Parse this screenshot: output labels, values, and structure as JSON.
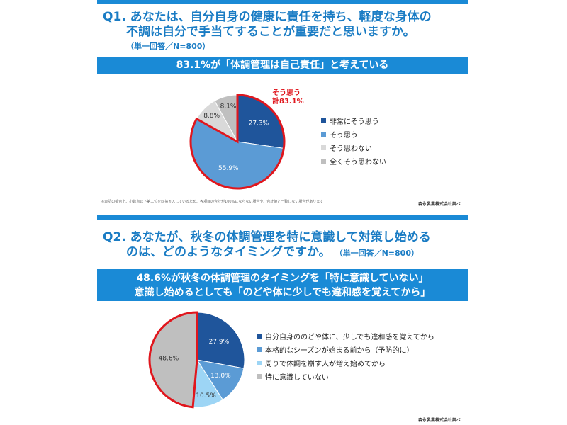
{
  "q1": {
    "title_line1": "Q1. あなたは、自分自身の健康に責任を持ち、軽度な身体の",
    "title_line2": "不調は自分で手当てすることが重要だと思いますか。",
    "subtitle": "（単一回答／N=800）",
    "banner": "83.1%が「体調管理は自己責任」と考えている",
    "callout_line1": "そう思う",
    "callout_line2": "計83.1%",
    "note": "※表記の都合上、小数点以下第二位を四捨五入しているため、各項目の合計が100%にならない場合や、合計値と一致しない場合があります",
    "source": "森永乳業株式会社調べ"
  },
  "q2": {
    "title_line1": "Q2. あなたが、秋冬の体調管理を特に意識して対策し始める",
    "title_line2": "のは、どのようなタイミングですか。",
    "subtitle": "（単一回答／N=800）",
    "banner_line1": "48.6%が秋冬の体調管理のタイミングを「特に意識していない」",
    "banner_line2": "意識し始めるとしても「のどや体に少しでも違和感を覚えてから」",
    "source": "森永乳業株式会社調べ"
  },
  "chart_data": [
    {
      "type": "pie",
      "categories": [
        "非常にそう思う",
        "そう思う",
        "そう思わない",
        "全くそう思わない"
      ],
      "values": [
        27.3,
        55.9,
        8.8,
        8.1
      ],
      "labels": [
        "27.3%",
        "55.9%",
        "8.8%",
        "8.1%"
      ],
      "colors": [
        "#1f559b",
        "#5b9bd5",
        "#d9d9d9",
        "#bfbfbf"
      ],
      "label_colors": [
        "#fff",
        "#fff",
        "#333",
        "#333"
      ],
      "highlight": [
        0,
        1
      ],
      "highlight_color": "#e0161d",
      "legend": "right"
    },
    {
      "type": "pie",
      "categories": [
        "自分自身ののどや体に、少しでも違和感を覚えてから",
        "本格的なシーズンが始まる前から（予防的に）",
        "周りで体調を崩す人が増え始めてから",
        "特に意識していない"
      ],
      "values": [
        27.9,
        13.0,
        10.5,
        48.6
      ],
      "labels": [
        "27.9%",
        "13.0%",
        "10.5%",
        "48.6%"
      ],
      "colors": [
        "#1f559b",
        "#5b9bd5",
        "#9dd5f5",
        "#bfbfbf"
      ],
      "label_colors": [
        "#fff",
        "#fff",
        "#333",
        "#333"
      ],
      "highlight": [
        3
      ],
      "highlight_color": "#e0161d",
      "legend": "right"
    }
  ]
}
